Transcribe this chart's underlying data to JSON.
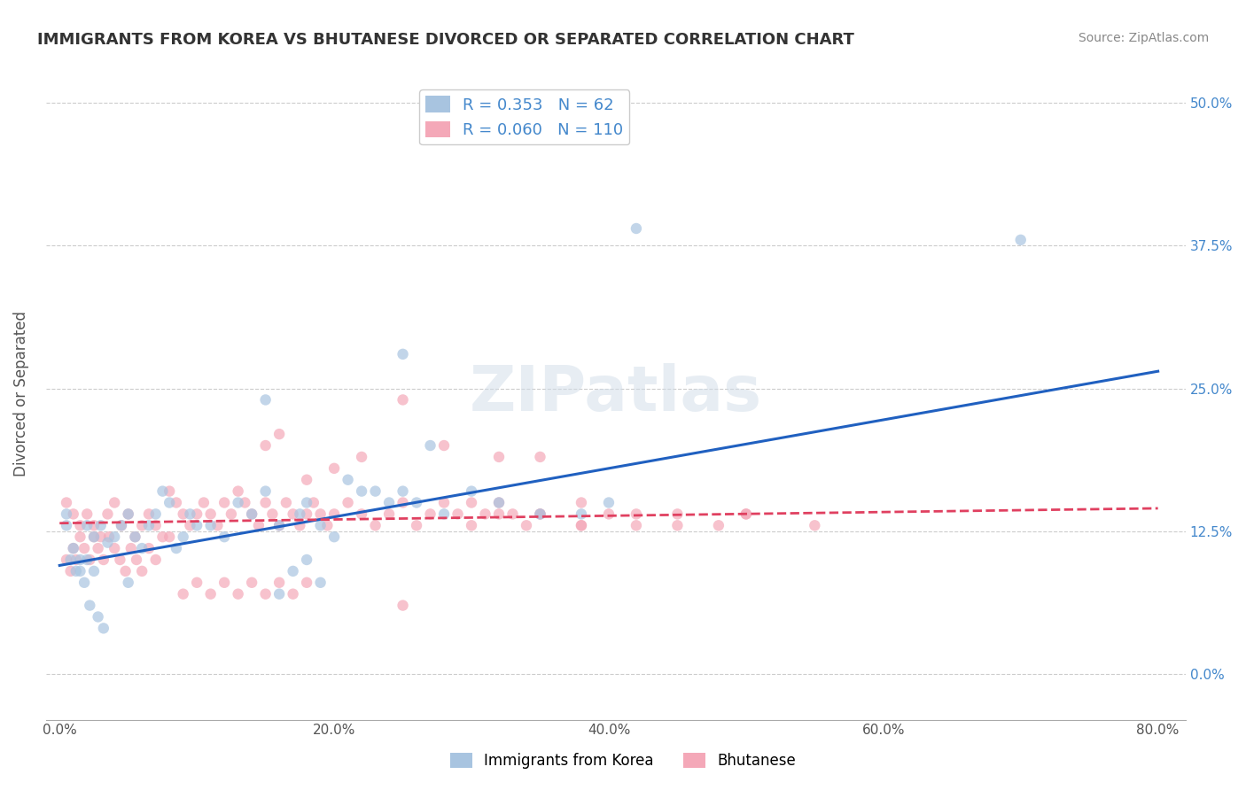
{
  "title": "IMMIGRANTS FROM KOREA VS BHUTANESE DIVORCED OR SEPARATED CORRELATION CHART",
  "source": "Source: ZipAtlas.com",
  "ylabel": "Divorced or Separated",
  "xlabel_ticks": [
    "0.0%",
    "20.0%",
    "40.0%",
    "60.0%",
    "80.0%"
  ],
  "xlabel_vals": [
    0.0,
    0.2,
    0.4,
    0.6,
    0.8
  ],
  "ylabel_ticks": [
    "0.0%",
    "12.5%",
    "25.0%",
    "37.5%",
    "50.0%"
  ],
  "ylabel_vals": [
    0.0,
    0.125,
    0.25,
    0.375,
    0.5
  ],
  "xlim": [
    -0.01,
    0.82
  ],
  "ylim": [
    -0.04,
    0.53
  ],
  "korea_R": 0.353,
  "korea_N": 62,
  "bhutan_R": 0.06,
  "bhutan_N": 110,
  "korea_color": "#a8c4e0",
  "bhutan_color": "#f4a8b8",
  "korea_line_color": "#2060c0",
  "bhutan_line_color": "#e04060",
  "watermark": "ZIPatlas",
  "legend_korea_label": "Immigrants from Korea",
  "legend_bhutan_label": "Bhutanese",
  "korea_scatter_x": [
    0.02,
    0.025,
    0.01,
    0.015,
    0.005,
    0.03,
    0.035,
    0.04,
    0.02,
    0.015,
    0.05,
    0.045,
    0.055,
    0.06,
    0.025,
    0.08,
    0.07,
    0.065,
    0.075,
    0.05,
    0.1,
    0.09,
    0.085,
    0.095,
    0.11,
    0.13,
    0.12,
    0.14,
    0.15,
    0.16,
    0.175,
    0.18,
    0.19,
    0.2,
    0.21,
    0.22,
    0.18,
    0.17,
    0.19,
    0.16,
    0.23,
    0.24,
    0.25,
    0.26,
    0.28,
    0.3,
    0.32,
    0.35,
    0.38,
    0.4,
    0.005,
    0.008,
    0.012,
    0.018,
    0.022,
    0.028,
    0.032,
    0.15,
    0.42,
    0.7,
    0.25,
    0.27
  ],
  "korea_scatter_y": [
    0.13,
    0.12,
    0.11,
    0.1,
    0.14,
    0.13,
    0.115,
    0.12,
    0.1,
    0.09,
    0.14,
    0.13,
    0.12,
    0.11,
    0.09,
    0.15,
    0.14,
    0.13,
    0.16,
    0.08,
    0.13,
    0.12,
    0.11,
    0.14,
    0.13,
    0.15,
    0.12,
    0.14,
    0.16,
    0.13,
    0.14,
    0.15,
    0.13,
    0.12,
    0.17,
    0.16,
    0.1,
    0.09,
    0.08,
    0.07,
    0.16,
    0.15,
    0.16,
    0.15,
    0.14,
    0.16,
    0.15,
    0.14,
    0.14,
    0.15,
    0.13,
    0.1,
    0.09,
    0.08,
    0.06,
    0.05,
    0.04,
    0.24,
    0.39,
    0.38,
    0.28,
    0.2
  ],
  "bhutan_scatter_x": [
    0.01,
    0.015,
    0.005,
    0.02,
    0.025,
    0.03,
    0.035,
    0.04,
    0.045,
    0.05,
    0.055,
    0.06,
    0.065,
    0.07,
    0.075,
    0.08,
    0.085,
    0.09,
    0.095,
    0.1,
    0.105,
    0.11,
    0.115,
    0.12,
    0.125,
    0.13,
    0.135,
    0.14,
    0.145,
    0.15,
    0.155,
    0.16,
    0.165,
    0.17,
    0.175,
    0.18,
    0.185,
    0.19,
    0.195,
    0.2,
    0.21,
    0.22,
    0.23,
    0.24,
    0.25,
    0.26,
    0.27,
    0.28,
    0.29,
    0.3,
    0.31,
    0.32,
    0.33,
    0.34,
    0.35,
    0.38,
    0.4,
    0.42,
    0.45,
    0.5,
    0.15,
    0.2,
    0.25,
    0.18,
    0.22,
    0.16,
    0.28,
    0.32,
    0.35,
    0.38,
    0.005,
    0.008,
    0.01,
    0.012,
    0.015,
    0.018,
    0.022,
    0.025,
    0.028,
    0.032,
    0.036,
    0.04,
    0.044,
    0.048,
    0.052,
    0.056,
    0.06,
    0.065,
    0.07,
    0.08,
    0.09,
    0.1,
    0.11,
    0.12,
    0.13,
    0.14,
    0.15,
    0.16,
    0.17,
    0.18,
    0.35,
    0.3,
    0.25,
    0.42,
    0.48,
    0.55,
    0.5,
    0.45,
    0.38,
    0.32
  ],
  "bhutan_scatter_y": [
    0.14,
    0.13,
    0.15,
    0.14,
    0.13,
    0.12,
    0.14,
    0.15,
    0.13,
    0.14,
    0.12,
    0.13,
    0.14,
    0.13,
    0.12,
    0.16,
    0.15,
    0.14,
    0.13,
    0.14,
    0.15,
    0.14,
    0.13,
    0.15,
    0.14,
    0.16,
    0.15,
    0.14,
    0.13,
    0.15,
    0.14,
    0.13,
    0.15,
    0.14,
    0.13,
    0.14,
    0.15,
    0.14,
    0.13,
    0.14,
    0.15,
    0.14,
    0.13,
    0.14,
    0.15,
    0.13,
    0.14,
    0.15,
    0.14,
    0.13,
    0.14,
    0.15,
    0.14,
    0.13,
    0.14,
    0.13,
    0.14,
    0.13,
    0.14,
    0.14,
    0.2,
    0.18,
    0.24,
    0.17,
    0.19,
    0.21,
    0.2,
    0.19,
    0.19,
    0.13,
    0.1,
    0.09,
    0.11,
    0.1,
    0.12,
    0.11,
    0.1,
    0.12,
    0.11,
    0.1,
    0.12,
    0.11,
    0.1,
    0.09,
    0.11,
    0.1,
    0.09,
    0.11,
    0.1,
    0.12,
    0.07,
    0.08,
    0.07,
    0.08,
    0.07,
    0.08,
    0.07,
    0.08,
    0.07,
    0.08,
    0.14,
    0.15,
    0.06,
    0.14,
    0.13,
    0.13,
    0.14,
    0.13,
    0.15,
    0.14
  ]
}
